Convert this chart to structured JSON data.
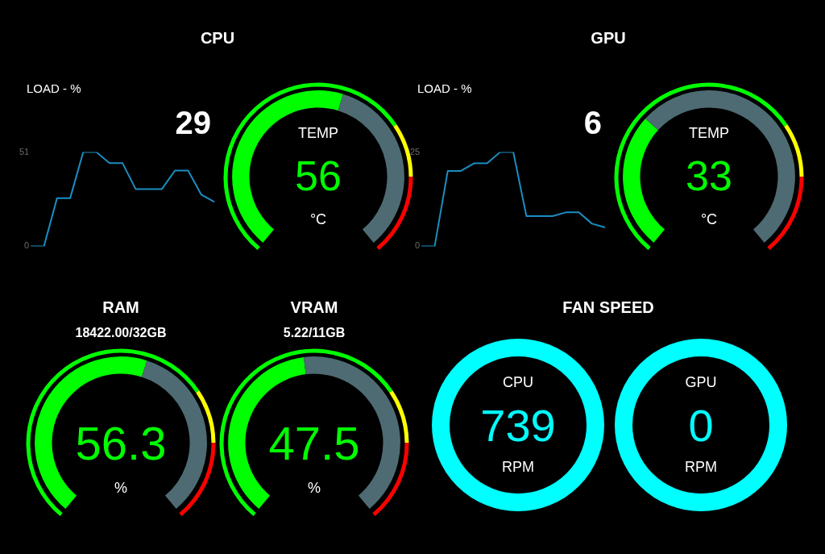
{
  "chart_data": [
    {
      "type": "line",
      "title": "CPU",
      "ylabel": "LOAD - %",
      "categories": [
        null,
        null,
        null,
        null,
        null,
        null,
        null,
        null,
        null,
        null,
        null,
        null,
        null,
        null,
        null
      ],
      "series": [
        {
          "color": "#1b8ec2",
          "values": [
            0,
            0,
            26,
            26,
            51,
            51,
            45,
            45,
            31,
            31,
            31,
            41,
            41,
            28,
            24
          ]
        }
      ],
      "ylim": [
        0,
        51
      ],
      "yticks": [
        0,
        51
      ],
      "tick_labels": "y",
      "annotations": [
        "29"
      ]
    },
    {
      "type": "donut",
      "categories": [
        null,
        null
      ],
      "values": [
        56,
        44
      ],
      "colors": [
        "#00ff00",
        "#4e6b73"
      ],
      "annotations": [
        "TEMP",
        "56",
        "°C"
      ]
    },
    {
      "type": "line",
      "title": "GPU",
      "ylabel": "LOAD - %",
      "categories": [
        null,
        null,
        null,
        null,
        null,
        null,
        null,
        null,
        null,
        null,
        null,
        null,
        null,
        null,
        null
      ],
      "series": [
        {
          "color": "#1b8ec2",
          "values": [
            0,
            0,
            20,
            20,
            22,
            22,
            25,
            25,
            8,
            8,
            8,
            9,
            9,
            6,
            5
          ]
        }
      ],
      "ylim": [
        0,
        25
      ],
      "yticks": [
        0,
        25
      ],
      "tick_labels": "y",
      "annotations": [
        "6"
      ]
    },
    {
      "type": "donut",
      "categories": [
        null,
        null
      ],
      "values": [
        33,
        67
      ],
      "colors": [
        "#00ff00",
        "#4e6b73"
      ],
      "annotations": [
        "TEMP",
        "33",
        "°C"
      ]
    },
    {
      "type": "donut",
      "title": "RAM",
      "subtitle": "18422.00/32GB",
      "categories": [
        null,
        null
      ],
      "values": [
        56.3,
        43.7
      ],
      "colors": [
        "#00ff00",
        "#4e6b73"
      ],
      "annotations": [
        "56.3",
        "%"
      ]
    },
    {
      "type": "donut",
      "title": "VRAM",
      "subtitle": "5.22/11GB",
      "categories": [
        null,
        null
      ],
      "values": [
        47.5,
        52.5
      ],
      "colors": [
        "#00ff00",
        "#4e6b73"
      ],
      "annotations": [
        "47.5",
        "%"
      ]
    },
    {
      "type": "other",
      "title": "FAN SPEED",
      "color": "#00ffff",
      "annotations": [
        "CPU",
        "739",
        "RPM"
      ]
    },
    {
      "type": "other",
      "color": "#00ffff",
      "annotations": [
        "GPU",
        "0",
        "RPM"
      ]
    }
  ]
}
